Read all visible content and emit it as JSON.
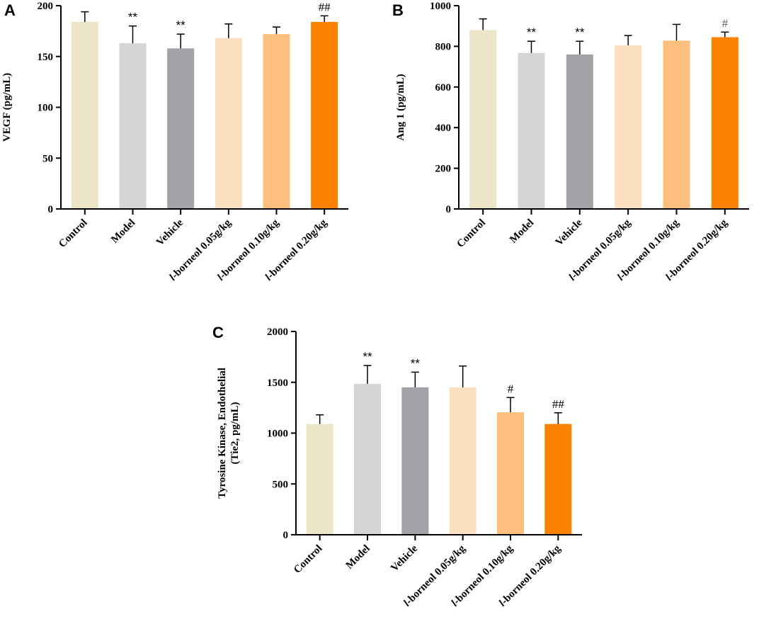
{
  "chart_data": [
    {
      "panel": "A",
      "type": "bar",
      "categories": [
        "Control",
        "Model",
        "Vehicle",
        "l-borneol 0.05g/kg",
        "l-borneol 0.10g/kg",
        "l-borneol 0.20g/kg"
      ],
      "values": [
        184,
        163,
        158,
        168,
        172,
        184
      ],
      "errors": [
        10,
        17,
        14,
        14,
        7,
        6
      ],
      "significance": [
        "",
        "**",
        "**",
        "",
        "",
        "##"
      ],
      "colors": [
        "#ede5c8",
        "#d5d5d5",
        "#a2a2a8",
        "#fde0c2",
        "#fdbf7d",
        "#fb8100"
      ],
      "title": "",
      "xlabel": "",
      "ylabel": "VEGF (pg/mL)",
      "ylim": [
        0,
        200
      ],
      "yticks": [
        0,
        50,
        100,
        150,
        200
      ]
    },
    {
      "panel": "B",
      "type": "bar",
      "categories": [
        "Control",
        "Model",
        "Vehicle",
        "l-borneol 0.05g/kg",
        "l-borneol 0.10g/kg",
        "l-borneol 0.20g/kg"
      ],
      "values": [
        880,
        767,
        760,
        805,
        828,
        845
      ],
      "errors": [
        55,
        58,
        65,
        48,
        80,
        25
      ],
      "significance": [
        "",
        "**",
        "**",
        "",
        "",
        "#"
      ],
      "colors": [
        "#ede5c8",
        "#d5d5d5",
        "#a2a2a8",
        "#fde0c2",
        "#fdbf7d",
        "#fb8100"
      ],
      "title": "",
      "xlabel": "",
      "ylabel": "Ang 1 (pg/mL)",
      "ylim": [
        0,
        1000
      ],
      "yticks": [
        0,
        200,
        400,
        600,
        800,
        1000
      ]
    },
    {
      "panel": "C",
      "type": "bar",
      "categories": [
        "Control",
        "Model",
        "Vehicle",
        "l-borneol 0.05g/kg",
        "l-borneol 0.10g/kg",
        "l-borneol 0.20g/kg"
      ],
      "values": [
        1090,
        1485,
        1450,
        1450,
        1205,
        1090
      ],
      "errors": [
        90,
        180,
        150,
        210,
        145,
        110
      ],
      "significance": [
        "",
        "**",
        "**",
        "",
        "#",
        "##"
      ],
      "colors": [
        "#ede5c8",
        "#d5d5d5",
        "#a2a2a8",
        "#fde0c2",
        "#fdbf7d",
        "#fb8100"
      ],
      "title": "",
      "xlabel": "",
      "ylabel": "Tyrosine Kinase, Endothelial (Tie2, pg/mL)",
      "ylabel_lines": [
        "Tyrosine Kinase, Endothelial",
        "(Tie2, pg/mL)"
      ],
      "ylim": [
        0,
        2000
      ],
      "yticks": [
        0,
        500,
        1000,
        1500,
        2000
      ]
    }
  ]
}
